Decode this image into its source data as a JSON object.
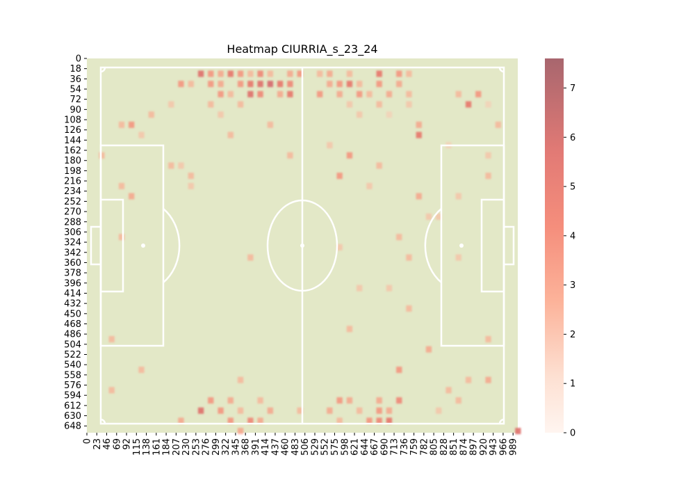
{
  "chart_data": {
    "type": "heatmap",
    "title": "Heatmap CIURRIA_s_23_24",
    "xlabel": "",
    "ylabel": "",
    "x_ticks": [
      "0",
      "23",
      "46",
      "69",
      "92",
      "115",
      "138",
      "161",
      "184",
      "207",
      "230",
      "253",
      "276",
      "299",
      "322",
      "345",
      "368",
      "391",
      "414",
      "437",
      "460",
      "483",
      "506",
      "529",
      "552",
      "575",
      "598",
      "621",
      "644",
      "667",
      "690",
      "713",
      "736",
      "759",
      "782",
      "805",
      "828",
      "851",
      "874",
      "897",
      "920",
      "943",
      "966",
      "989"
    ],
    "y_ticks": [
      "0",
      "18",
      "36",
      "54",
      "72",
      "90",
      "108",
      "126",
      "144",
      "162",
      "180",
      "198",
      "216",
      "234",
      "252",
      "270",
      "288",
      "306",
      "324",
      "342",
      "360",
      "378",
      "396",
      "414",
      "432",
      "450",
      "468",
      "486",
      "504",
      "522",
      "540",
      "558",
      "576",
      "594",
      "612",
      "630",
      "648"
    ],
    "xlim": [
      0,
      1000
    ],
    "ylim": [
      0,
      660
    ],
    "colorbar": {
      "min": 0,
      "max": 7.6,
      "ticks": [
        0,
        1,
        2,
        3,
        4,
        5,
        6,
        7
      ]
    },
    "colors": {
      "pitch": "#e3e8c7",
      "lines": "#ffffff",
      "cmap_low": "#fff5f0",
      "cmap_high": "#a84e5a"
    },
    "cells": [
      {
        "x": 253,
        "y": 18,
        "v": 5.5
      },
      {
        "x": 276,
        "y": 18,
        "v": 4
      },
      {
        "x": 299,
        "y": 18,
        "v": 3.5
      },
      {
        "x": 322,
        "y": 18,
        "v": 5
      },
      {
        "x": 345,
        "y": 18,
        "v": 4
      },
      {
        "x": 368,
        "y": 18,
        "v": 3
      },
      {
        "x": 391,
        "y": 18,
        "v": 4.5
      },
      {
        "x": 414,
        "y": 18,
        "v": 3
      },
      {
        "x": 460,
        "y": 18,
        "v": 3.5
      },
      {
        "x": 483,
        "y": 18,
        "v": 4
      },
      {
        "x": 529,
        "y": 18,
        "v": 3
      },
      {
        "x": 552,
        "y": 18,
        "v": 3.5
      },
      {
        "x": 598,
        "y": 18,
        "v": 3
      },
      {
        "x": 667,
        "y": 18,
        "v": 5
      },
      {
        "x": 713,
        "y": 18,
        "v": 4
      },
      {
        "x": 736,
        "y": 18,
        "v": 3
      },
      {
        "x": 207,
        "y": 36,
        "v": 4
      },
      {
        "x": 230,
        "y": 36,
        "v": 3
      },
      {
        "x": 276,
        "y": 36,
        "v": 4
      },
      {
        "x": 299,
        "y": 36,
        "v": 3.5
      },
      {
        "x": 345,
        "y": 36,
        "v": 4
      },
      {
        "x": 368,
        "y": 36,
        "v": 5
      },
      {
        "x": 391,
        "y": 36,
        "v": 5.5
      },
      {
        "x": 414,
        "y": 36,
        "v": 6
      },
      {
        "x": 437,
        "y": 36,
        "v": 5
      },
      {
        "x": 460,
        "y": 36,
        "v": 4.5
      },
      {
        "x": 552,
        "y": 36,
        "v": 3.5
      },
      {
        "x": 575,
        "y": 36,
        "v": 4
      },
      {
        "x": 598,
        "y": 36,
        "v": 5
      },
      {
        "x": 621,
        "y": 36,
        "v": 3
      },
      {
        "x": 667,
        "y": 36,
        "v": 4
      },
      {
        "x": 713,
        "y": 36,
        "v": 3.5
      },
      {
        "x": 299,
        "y": 54,
        "v": 4
      },
      {
        "x": 322,
        "y": 54,
        "v": 3
      },
      {
        "x": 368,
        "y": 54,
        "v": 5.5
      },
      {
        "x": 391,
        "y": 54,
        "v": 4.5
      },
      {
        "x": 437,
        "y": 54,
        "v": 3.5
      },
      {
        "x": 460,
        "y": 54,
        "v": 5
      },
      {
        "x": 529,
        "y": 54,
        "v": 4
      },
      {
        "x": 575,
        "y": 54,
        "v": 3.5
      },
      {
        "x": 621,
        "y": 54,
        "v": 4
      },
      {
        "x": 644,
        "y": 54,
        "v": 3
      },
      {
        "x": 690,
        "y": 54,
        "v": 3.5
      },
      {
        "x": 736,
        "y": 54,
        "v": 3
      },
      {
        "x": 851,
        "y": 54,
        "v": 3
      },
      {
        "x": 897,
        "y": 54,
        "v": 4
      },
      {
        "x": 184,
        "y": 72,
        "v": 2.5
      },
      {
        "x": 276,
        "y": 72,
        "v": 3
      },
      {
        "x": 345,
        "y": 72,
        "v": 3
      },
      {
        "x": 598,
        "y": 72,
        "v": 2.5
      },
      {
        "x": 667,
        "y": 72,
        "v": 3
      },
      {
        "x": 736,
        "y": 72,
        "v": 2.5
      },
      {
        "x": 874,
        "y": 72,
        "v": 5
      },
      {
        "x": 920,
        "y": 72,
        "v": 2
      },
      {
        "x": 138,
        "y": 90,
        "v": 3
      },
      {
        "x": 299,
        "y": 90,
        "v": 2.5
      },
      {
        "x": 621,
        "y": 90,
        "v": 2.5
      },
      {
        "x": 690,
        "y": 90,
        "v": 2
      },
      {
        "x": 69,
        "y": 108,
        "v": 3
      },
      {
        "x": 92,
        "y": 108,
        "v": 4
      },
      {
        "x": 414,
        "y": 108,
        "v": 3
      },
      {
        "x": 759,
        "y": 108,
        "v": 3.5
      },
      {
        "x": 943,
        "y": 108,
        "v": 3
      },
      {
        "x": 115,
        "y": 126,
        "v": 2.5
      },
      {
        "x": 322,
        "y": 126,
        "v": 3
      },
      {
        "x": 759,
        "y": 126,
        "v": 5
      },
      {
        "x": 552,
        "y": 144,
        "v": 2.5
      },
      {
        "x": 828,
        "y": 144,
        "v": 2
      },
      {
        "x": 23,
        "y": 162,
        "v": 3
      },
      {
        "x": 460,
        "y": 162,
        "v": 3
      },
      {
        "x": 598,
        "y": 162,
        "v": 4
      },
      {
        "x": 920,
        "y": 162,
        "v": 2.5
      },
      {
        "x": 184,
        "y": 180,
        "v": 3
      },
      {
        "x": 207,
        "y": 180,
        "v": 2.5
      },
      {
        "x": 667,
        "y": 180,
        "v": 3
      },
      {
        "x": 230,
        "y": 198,
        "v": 3
      },
      {
        "x": 575,
        "y": 198,
        "v": 4
      },
      {
        "x": 920,
        "y": 198,
        "v": 3
      },
      {
        "x": 69,
        "y": 216,
        "v": 3
      },
      {
        "x": 230,
        "y": 216,
        "v": 2.5
      },
      {
        "x": 644,
        "y": 216,
        "v": 2.5
      },
      {
        "x": 92,
        "y": 234,
        "v": 3.5
      },
      {
        "x": 759,
        "y": 234,
        "v": 3.5
      },
      {
        "x": 851,
        "y": 234,
        "v": 2.5
      },
      {
        "x": 782,
        "y": 270,
        "v": 2.5
      },
      {
        "x": 805,
        "y": 270,
        "v": 2.5
      },
      {
        "x": 69,
        "y": 306,
        "v": 3
      },
      {
        "x": 713,
        "y": 306,
        "v": 3
      },
      {
        "x": 575,
        "y": 324,
        "v": 2.5
      },
      {
        "x": 368,
        "y": 342,
        "v": 3
      },
      {
        "x": 736,
        "y": 342,
        "v": 3
      },
      {
        "x": 851,
        "y": 342,
        "v": 2.5
      },
      {
        "x": 621,
        "y": 396,
        "v": 2.5
      },
      {
        "x": 690,
        "y": 396,
        "v": 2.5
      },
      {
        "x": 736,
        "y": 432,
        "v": 3
      },
      {
        "x": 598,
        "y": 468,
        "v": 3
      },
      {
        "x": 46,
        "y": 486,
        "v": 3
      },
      {
        "x": 920,
        "y": 486,
        "v": 3
      },
      {
        "x": 782,
        "y": 504,
        "v": 3.5
      },
      {
        "x": 115,
        "y": 540,
        "v": 3
      },
      {
        "x": 713,
        "y": 540,
        "v": 4
      },
      {
        "x": 345,
        "y": 558,
        "v": 3
      },
      {
        "x": 874,
        "y": 558,
        "v": 3
      },
      {
        "x": 46,
        "y": 576,
        "v": 3
      },
      {
        "x": 828,
        "y": 576,
        "v": 3
      },
      {
        "x": 920,
        "y": 558,
        "v": 3.5
      },
      {
        "x": 276,
        "y": 594,
        "v": 4
      },
      {
        "x": 322,
        "y": 594,
        "v": 3.5
      },
      {
        "x": 391,
        "y": 594,
        "v": 3
      },
      {
        "x": 575,
        "y": 594,
        "v": 4
      },
      {
        "x": 598,
        "y": 594,
        "v": 3.5
      },
      {
        "x": 667,
        "y": 594,
        "v": 3.5
      },
      {
        "x": 713,
        "y": 594,
        "v": 4.5
      },
      {
        "x": 851,
        "y": 594,
        "v": 3
      },
      {
        "x": 253,
        "y": 612,
        "v": 5.5
      },
      {
        "x": 299,
        "y": 612,
        "v": 4
      },
      {
        "x": 345,
        "y": 612,
        "v": 3
      },
      {
        "x": 414,
        "y": 612,
        "v": 3.5
      },
      {
        "x": 483,
        "y": 612,
        "v": 3
      },
      {
        "x": 552,
        "y": 612,
        "v": 3.5
      },
      {
        "x": 621,
        "y": 612,
        "v": 3
      },
      {
        "x": 667,
        "y": 612,
        "v": 4
      },
      {
        "x": 690,
        "y": 612,
        "v": 3.5
      },
      {
        "x": 805,
        "y": 612,
        "v": 2.5
      },
      {
        "x": 207,
        "y": 630,
        "v": 3.5
      },
      {
        "x": 322,
        "y": 630,
        "v": 4
      },
      {
        "x": 368,
        "y": 630,
        "v": 4.5
      },
      {
        "x": 391,
        "y": 630,
        "v": 3.5
      },
      {
        "x": 575,
        "y": 630,
        "v": 3
      },
      {
        "x": 644,
        "y": 630,
        "v": 4
      },
      {
        "x": 667,
        "y": 630,
        "v": 4.5
      },
      {
        "x": 690,
        "y": 630,
        "v": 5
      },
      {
        "x": 345,
        "y": 648,
        "v": 3.5
      },
      {
        "x": 989,
        "y": 648,
        "v": 5.5
      }
    ]
  }
}
